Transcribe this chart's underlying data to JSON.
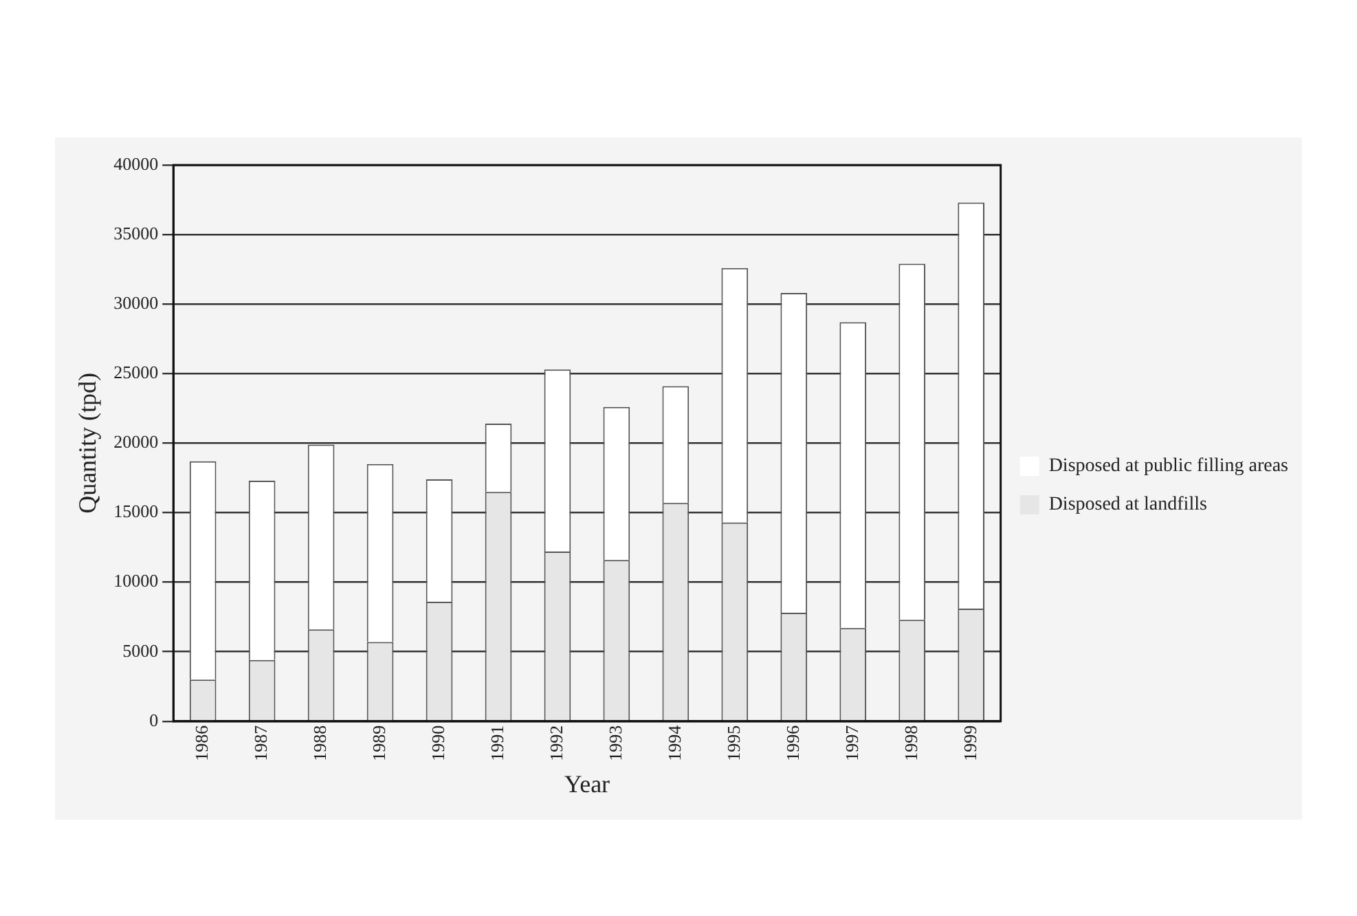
{
  "chart_data": {
    "type": "bar",
    "xlabel": "Year",
    "ylabel": "Quantity (tpd)",
    "categories": [
      "1986",
      "1987",
      "1988",
      "1989",
      "1990",
      "1991",
      "1992",
      "1993",
      "1994",
      "1995",
      "1996",
      "1997",
      "1998",
      "1999"
    ],
    "stacked": true,
    "series": [
      {
        "name": "Disposed at landfills",
        "color": "#e6e6e6",
        "values": [
          3000,
          4400,
          6600,
          5700,
          8600,
          16500,
          12200,
          11600,
          15700,
          14300,
          7800,
          6700,
          7300,
          8100
        ]
      },
      {
        "name": "Disposed at public filling areas",
        "color": "#ffffff",
        "values": [
          15700,
          12900,
          13300,
          12800,
          8800,
          4900,
          13100,
          11000,
          8400,
          18300,
          23000,
          22000,
          25600,
          29200
        ]
      }
    ],
    "ylim": [
      0,
      40000
    ],
    "yticks": [
      0,
      5000,
      10000,
      15000,
      20000,
      25000,
      30000,
      35000,
      40000
    ],
    "grid": "y",
    "legend": "right"
  }
}
